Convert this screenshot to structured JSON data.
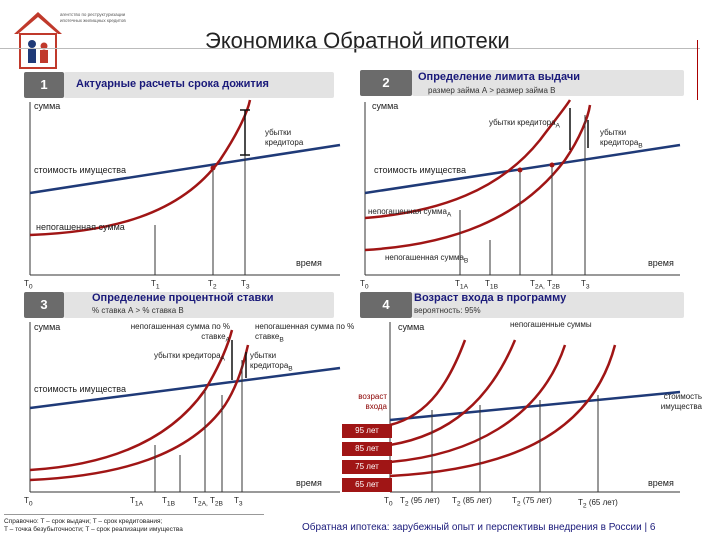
{
  "title": "Экономика Обратной ипотеки",
  "logo": {
    "name": "house-logo-icon",
    "text": "агентство по реструктуризации ипотечных жилищных кредитов"
  },
  "panels": {
    "p1": {
      "num": "1",
      "title": "Актуарные расчеты срока дожития"
    },
    "p2": {
      "num": "2",
      "title": "Определение лимита выдачи",
      "subtitle": "размер займа А > размер займа В"
    },
    "p3": {
      "num": "3",
      "title": "Определение процентной ставки",
      "subtitle": "% ставка А > % ставка В"
    },
    "p4": {
      "num": "4",
      "title": "Возраст входа в программу",
      "subtitle": "вероятность: 95%"
    }
  },
  "labels": {
    "summa": "сумма",
    "vremya": "время",
    "stoimost": "стоимость имущества",
    "nepogash": "непогашенная сумма",
    "ubytki": "убытки кредитора",
    "ubytki_a": "убытки кредитора",
    "ubytki_b": "убытки кредитора",
    "sub_a": "A",
    "sub_b": "B",
    "nepogash_a": "непогашенная сумма",
    "nepogash_b": "непогашенная сумма",
    "nepogash_pct_a": "непогашенная сумма по % ставке",
    "nepogash_pct_b": "непогашенная сумма по % ставке",
    "nepogash_multi": "непогашенные суммы",
    "vozrast": "возраст входа",
    "stoimost2": "стоимость имущества"
  },
  "ticks": {
    "t0": "T",
    "t0s": "0",
    "t1": "T",
    "t1s": "1",
    "t2": "T",
    "t2s": "2",
    "t3": "T",
    "t3s": "3",
    "t1a": "T",
    "t1as": "1A",
    "t1b": "T",
    "t1bs": "1B",
    "t2ab": "T",
    "t2as": "2A,",
    "t2b": "T",
    "t2bs": "2B",
    "p4_t0": "T",
    "p4_t0s": "0",
    "p4_t2_95": "T",
    "p4_t2_95s": "2",
    "p4_t2_95l": " (95 лет)",
    "p4_t2_85": "T",
    "p4_t2_85s": "2",
    "p4_t2_85l": " (85 лет)",
    "p4_t2_75": "T",
    "p4_t2_75s": "2",
    "p4_t2_75l": " (75 лет)",
    "p4_t2_65": "T",
    "p4_t2_65s": "2",
    "p4_t2_65l": " (65 лет)"
  },
  "ages": [
    "95 лет",
    "85 лет",
    "75 лет",
    "65 лет"
  ],
  "footnote": {
    "line1": "Справочно: T – срок выдачи; T – срок кредитования;",
    "line2": "T – точка безубыточности; T – срок реализации имущества"
  },
  "footer": "Обратная ипотека: зарубежный опыт и перспективы внедрения в России  |  6",
  "colors": {
    "red": "#a01515",
    "blue": "#1f3a78",
    "header": "#6b6b6b",
    "header_light": "#e3e3e3"
  }
}
